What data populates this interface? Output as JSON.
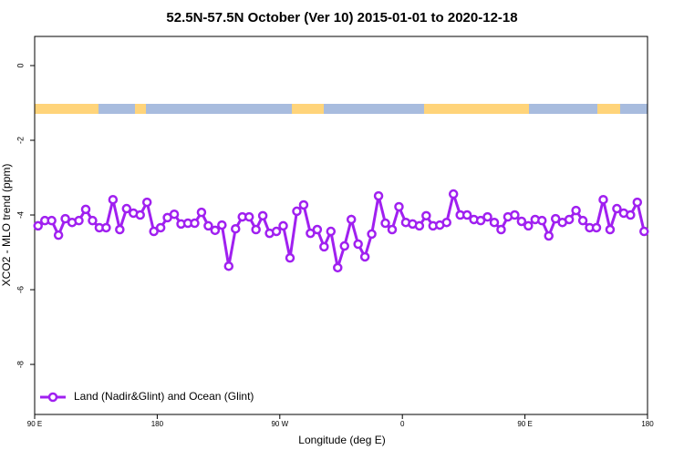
{
  "chart_data": {
    "type": "line",
    "title": "52.5N-57.5N October (Ver 10)   2015-01-01 to 2020-12-18",
    "x_label": "Longitude (deg E)",
    "y_label": "XCO2 - MLO trend (ppm)",
    "xlim": [
      90,
      540
    ],
    "ylim": [
      -9.34,
      0.78
    ],
    "xticks": [
      {
        "value": 90,
        "label": "90 E"
      },
      {
        "value": 180,
        "label": "180"
      },
      {
        "value": 270,
        "label": "90 W"
      },
      {
        "value": 360,
        "label": "0"
      },
      {
        "value": 450,
        "label": "90 E"
      },
      {
        "value": 540,
        "label": "180"
      }
    ],
    "yticks": [
      0,
      -2,
      -4,
      -6,
      -8
    ],
    "legend": "bottom-left",
    "x": [
      92.5,
      97.5,
      102.5,
      107.5,
      112.5,
      117.5,
      122.5,
      127.5,
      132.5,
      137.5,
      142.5,
      147.5,
      152.5,
      157.5,
      162.5,
      167.5,
      172.5,
      177.5,
      182.5,
      187.5,
      192.5,
      197.5,
      202.5,
      207.5,
      212.5,
      217.5,
      222.5,
      227.5,
      232.5,
      237.5,
      242.5,
      247.5,
      252.5,
      257.5,
      262.5,
      267.5,
      272.5,
      277.5,
      282.5,
      287.5,
      292.5,
      297.5,
      302.5,
      307.5,
      312.5,
      317.5,
      322.5,
      327.5,
      332.5,
      337.5,
      342.5,
      347.5,
      352.5,
      357.5,
      362.5,
      367.5,
      372.5,
      377.5,
      382.5,
      387.5,
      392.5,
      397.5,
      402.5,
      407.5,
      412.5,
      417.5,
      422.5,
      427.5,
      432.5,
      437.5,
      442.5,
      447.5,
      452.5,
      457.5,
      462.5,
      467.5,
      472.5,
      477.5,
      482.5,
      487.5,
      492.5,
      497.5,
      502.5,
      507.5,
      512.5,
      517.5,
      522.5,
      527.5,
      532.5,
      537.5
    ],
    "series": [
      {
        "name": "Land (Nadir&Glint) and Ocean (Glint)",
        "color": "#a020f0",
        "values": [
          -4.29,
          -4.15,
          -4.15,
          -4.54,
          -4.1,
          -4.2,
          -4.15,
          -3.85,
          -4.15,
          -4.34,
          -4.34,
          -3.59,
          -4.39,
          -3.83,
          -3.95,
          -4.0,
          -3.66,
          -4.44,
          -4.34,
          -4.07,
          -3.98,
          -4.24,
          -4.22,
          -4.22,
          -3.93,
          -4.29,
          -4.41,
          -4.27,
          -5.37,
          -4.37,
          -4.05,
          -4.05,
          -4.39,
          -4.02,
          -4.49,
          -4.44,
          -4.29,
          -5.15,
          -3.9,
          -3.73,
          -4.49,
          -4.39,
          -4.85,
          -4.44,
          -5.41,
          -4.83,
          -4.12,
          -4.78,
          -5.12,
          -4.51,
          -3.49,
          -4.22,
          -4.39,
          -3.78,
          -4.2,
          -4.24,
          -4.29,
          -4.02,
          -4.29,
          -4.27,
          -4.2,
          -3.44,
          -4.0,
          -4.0,
          -4.12,
          -4.15,
          -4.05,
          -4.2,
          -4.39,
          -4.05,
          -4.0,
          -4.17,
          -4.29,
          -4.12,
          -4.15,
          -4.56,
          -4.1,
          -4.2,
          -4.12,
          -3.88,
          -4.15,
          -4.34,
          -4.34,
          -3.59,
          -4.39,
          -3.83,
          -3.95,
          -4.0,
          -3.66,
          -4.44
        ]
      }
    ]
  }
}
